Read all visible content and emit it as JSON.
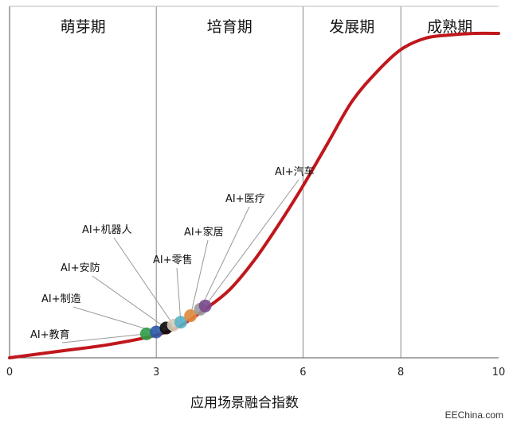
{
  "chart_data": {
    "type": "line",
    "title": "",
    "xlabel": "应用场景融合指数",
    "ylabel": "",
    "xlim": [
      0,
      10
    ],
    "ylim": [
      0,
      1
    ],
    "x_ticks": [
      "0",
      "3",
      "6",
      "8",
      "10"
    ],
    "x_tick_values": [
      0,
      3,
      6,
      8,
      10
    ],
    "phases": [
      {
        "label": "萌芽期",
        "from": 0,
        "to": 3
      },
      {
        "label": "培育期",
        "from": 3,
        "to": 6
      },
      {
        "label": "发展期",
        "from": 6,
        "to": 8
      },
      {
        "label": "成熟期",
        "from": 8,
        "to": 10
      }
    ],
    "series": [
      {
        "color": "#c0171d",
        "x": [
          0,
          1,
          2,
          3,
          3.5,
          4,
          4.5,
          5,
          5.5,
          6,
          6.5,
          7,
          7.5,
          8,
          8.5,
          9,
          9.5,
          10
        ],
        "y": [
          0.0,
          0.02,
          0.04,
          0.07,
          0.1,
          0.15,
          0.21,
          0.3,
          0.41,
          0.53,
          0.66,
          0.79,
          0.88,
          0.95,
          0.985,
          0.995,
          1.0,
          1.0
        ]
      }
    ],
    "annotations": [
      {
        "label": "AI+教育",
        "x": 2.8,
        "color": "#2e9b47"
      },
      {
        "label": "AI+制造",
        "x": 3.0,
        "color": "#2c5aa8"
      },
      {
        "label": "AI+安防",
        "x": 3.2,
        "color": "#0a0a0a"
      },
      {
        "label": "AI+机器人",
        "x": 3.35,
        "color": "#d9cdb8"
      },
      {
        "label": "AI+零售",
        "x": 3.5,
        "color": "#56b4c9"
      },
      {
        "label": "AI+家居",
        "x": 3.7,
        "color": "#e08a3c"
      },
      {
        "label": "AI+医疗",
        "x": 3.9,
        "color": "#9a9a9a"
      },
      {
        "label": "AI+汽车",
        "x": 4.0,
        "color": "#7a4a8f"
      }
    ]
  },
  "watermark": "EEChina.com"
}
